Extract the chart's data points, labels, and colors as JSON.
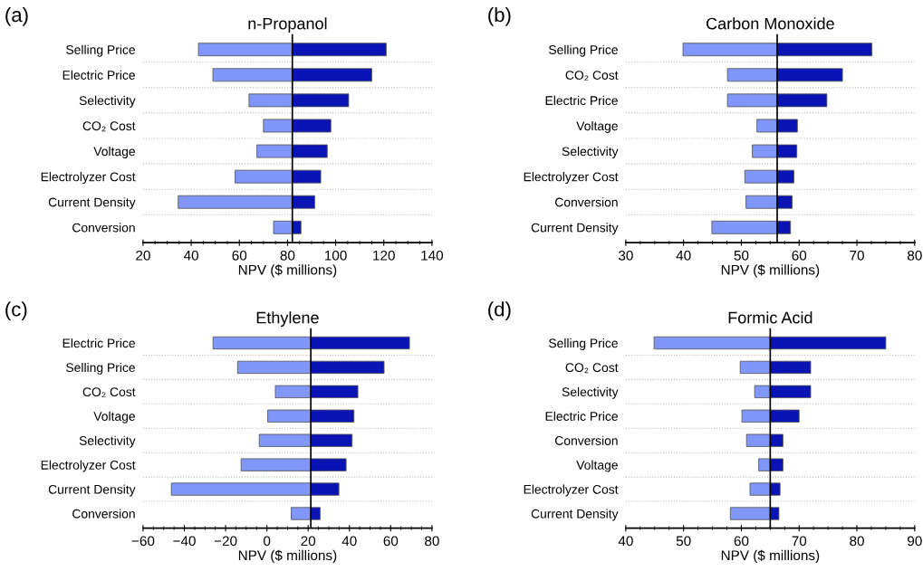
{
  "chart_data": [
    {
      "type": "bar",
      "orientation": "horizontal",
      "title": "n-Propanol",
      "xlabel": "NPV ($ millions)",
      "annotations": [
        "(a)"
      ],
      "categories": [
        "Selling Price",
        "Electric Price",
        "Selectivity",
        "CO₂ Cost",
        "Voltage",
        "Electrolyzer Cost",
        "Current Density",
        "Conversion"
      ],
      "series": [
        {
          "color": "#8096f8",
          "base": [
            82,
            82,
            82,
            82,
            82,
            82,
            82,
            82
          ],
          "values": [
            -39,
            -33,
            -18,
            -12,
            -14.7,
            -23.8,
            -47.4,
            -7.8
          ]
        },
        {
          "color": "#0a14b4",
          "base": [
            82,
            82,
            82,
            82,
            82,
            82,
            82,
            82
          ],
          "values": [
            39,
            33,
            23.4,
            16,
            14.5,
            11.8,
            9.3,
            3.6
          ]
        }
      ],
      "xlim": [
        20,
        140
      ],
      "xticks": [
        20,
        40,
        60,
        80,
        100,
        120,
        140
      ],
      "grid": "y",
      "ref_lines": [
        {
          "axis": "x",
          "value": 82,
          "color": "#000000"
        }
      ]
    },
    {
      "type": "bar",
      "orientation": "horizontal",
      "title": "Carbon Monoxide",
      "xlabel": "NPV ($ millions)",
      "annotations": [
        "(b)"
      ],
      "categories": [
        "Selling Price",
        "CO₂ Cost",
        "Electric Price",
        "Voltage",
        "Selectivity",
        "Electrolyzer Cost",
        "Conversion",
        "Current Density"
      ],
      "series": [
        {
          "color": "#8096f8",
          "base": [
            56.2,
            56.2,
            56.2,
            56.2,
            56.2,
            56.2,
            56.2,
            56.2
          ],
          "values": [
            -16.3,
            -8.6,
            -8.6,
            -3.5,
            -4.3,
            -5.6,
            -5.4,
            -11.3
          ]
        },
        {
          "color": "#0a14b4",
          "base": [
            56.2,
            56.2,
            56.2,
            56.2,
            56.2,
            56.2,
            56.2,
            56.2
          ],
          "values": [
            16.4,
            11.3,
            8.6,
            3.5,
            3.4,
            2.9,
            2.6,
            2.3
          ]
        }
      ],
      "xlim": [
        30,
        80
      ],
      "xticks": [
        30,
        40,
        50,
        60,
        70,
        80
      ],
      "grid": "y",
      "ref_lines": [
        {
          "axis": "x",
          "value": 56.2,
          "color": "#000000"
        }
      ]
    },
    {
      "type": "bar",
      "orientation": "horizontal",
      "title": "Ethylene",
      "xlabel": "NPV ($ millions)",
      "annotations": [
        "(c)"
      ],
      "categories": [
        "Electric Price",
        "Selling Price",
        "CO₂ Cost",
        "Voltage",
        "Selectivity",
        "Electrolyzer Cost",
        "Current Density",
        "Conversion"
      ],
      "series": [
        {
          "color": "#8096f8",
          "base": [
            21.3,
            21.3,
            21.3,
            21.3,
            21.3,
            21.3,
            21.3,
            21.3
          ],
          "values": [
            -47.4,
            -35.5,
            -17.2,
            -20.9,
            -25,
            -33.8,
            -67.6,
            -9.5
          ]
        },
        {
          "color": "#0a14b4",
          "base": [
            21.3,
            21.3,
            21.3,
            21.3,
            21.3,
            21.3,
            21.3,
            21.3
          ],
          "values": [
            47.8,
            35.5,
            22.8,
            20.9,
            20,
            17.1,
            13.6,
            4.5
          ]
        }
      ],
      "xlim": [
        -60,
        80
      ],
      "xticks": [
        {
          "value": -60,
          "label": "−60"
        },
        {
          "value": -40,
          "label": "−40"
        },
        {
          "value": -20,
          "label": "−20"
        },
        0,
        20,
        40,
        60,
        80
      ],
      "grid": "y",
      "ref_lines": [
        {
          "axis": "x",
          "value": 21.3,
          "color": "#000000"
        }
      ]
    },
    {
      "type": "bar",
      "orientation": "horizontal",
      "title": "Formic Acid",
      "xlabel": "NPV ($ millions)",
      "annotations": [
        "(d)"
      ],
      "categories": [
        "Selling Price",
        "CO₂ Cost",
        "Selectivity",
        "Electric Price",
        "Conversion",
        "Voltage",
        "Electrolyzer Cost",
        "Current Density"
      ],
      "series": [
        {
          "color": "#8096f8",
          "base": [
            65,
            65,
            65,
            65,
            65,
            65,
            65,
            65
          ],
          "values": [
            -20.1,
            -5.2,
            -2.7,
            -4.9,
            -4.1,
            -2,
            -3.5,
            -6.9
          ]
        },
        {
          "color": "#0a14b4",
          "base": [
            65,
            65,
            65,
            65,
            65,
            65,
            65,
            65
          ],
          "values": [
            20,
            7,
            7,
            5,
            2.2,
            2.2,
            1.7,
            1.5
          ]
        }
      ],
      "xlim": [
        40,
        90
      ],
      "xticks": [
        40,
        50,
        60,
        70,
        80,
        90
      ],
      "grid": "y",
      "ref_lines": [
        {
          "axis": "x",
          "value": 65,
          "color": "#000000"
        }
      ]
    }
  ]
}
